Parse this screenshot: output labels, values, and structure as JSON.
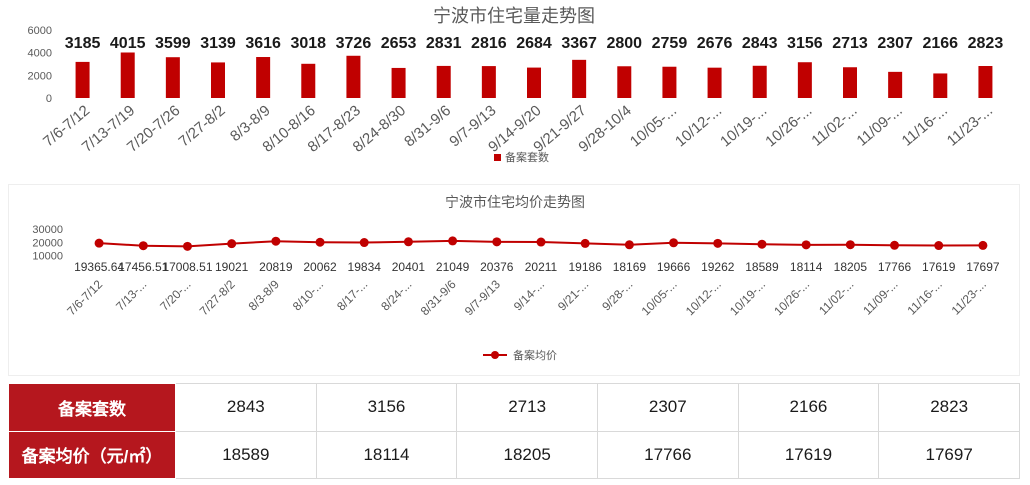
{
  "colors": {
    "bar": "#c00000",
    "line": "#c00000",
    "header_bg": "#b5171e"
  },
  "chart_data": [
    {
      "type": "bar",
      "title": "宁波市住宅量走势图",
      "ylim": [
        0,
        6000
      ],
      "yticks": [
        "0",
        "2000",
        "4000",
        "6000"
      ],
      "categories": [
        "7/6-7/12",
        "7/13-7/19",
        "7/20-7/26",
        "7/27-8/2",
        "8/3-8/9",
        "8/10-8/16",
        "8/17-8/23",
        "8/24-8/30",
        "8/31-9/6",
        "9/7-9/13",
        "9/14-9/20",
        "9/21-9/27",
        "9/28-10/4",
        "10/05-...",
        "10/12-...",
        "10/19-...",
        "10/26-...",
        "11/02-...",
        "11/09-...",
        "11/16-...",
        "11/23-..."
      ],
      "series": [
        {
          "name": "备案套数",
          "values": [
            3185,
            4015,
            3599,
            3139,
            3616,
            3018,
            3726,
            2653,
            2831,
            2816,
            2684,
            3367,
            2800,
            2759,
            2676,
            2843,
            3156,
            2713,
            2307,
            2166,
            2823
          ]
        }
      ],
      "legend": "bottom"
    },
    {
      "type": "line",
      "title": "宁波市住宅均价走势图",
      "ylim": [
        0,
        30000
      ],
      "yticks": [
        "10000",
        "20000",
        "30000"
      ],
      "categories": [
        "7/6-7/12",
        "7/13-...",
        "7/20-...",
        "7/27-8/2",
        "8/3-8/9",
        "8/10-...",
        "8/17-...",
        "8/24-...",
        "8/31-9/6",
        "9/7-9/13",
        "9/14-...",
        "9/21-...",
        "9/28-...",
        "10/05-...",
        "10/12-...",
        "10/19-...",
        "10/26-...",
        "11/02-...",
        "11/09-...",
        "11/16-...",
        "11/23-..."
      ],
      "series": [
        {
          "name": "备案均价",
          "values": [
            19365.64,
            17456.51,
            17008.51,
            19021,
            20819,
            20062,
            19834,
            20401,
            21049,
            20376,
            20211,
            19186,
            18169,
            19666,
            19262,
            18589,
            18114,
            18205,
            17766,
            17619,
            17697
          ]
        }
      ],
      "data_labels": [
        "19365.64",
        "17456.51",
        "17008.51",
        "19021",
        "20819",
        "20062",
        "19834",
        "20401",
        "21049",
        "20376",
        "20211",
        "19186",
        "18169",
        "19666",
        "19262",
        "18589",
        "18114",
        "18205",
        "17766",
        "17619",
        "17697"
      ],
      "legend": "bottom"
    },
    {
      "type": "table",
      "rows": [
        {
          "label": "备案套数",
          "values": [
            "2843",
            "3156",
            "2713",
            "2307",
            "2166",
            "2823"
          ]
        },
        {
          "label": "备案均价（元/㎡）",
          "values": [
            "18589",
            "18114",
            "18205",
            "17766",
            "17619",
            "17697"
          ]
        }
      ]
    }
  ]
}
